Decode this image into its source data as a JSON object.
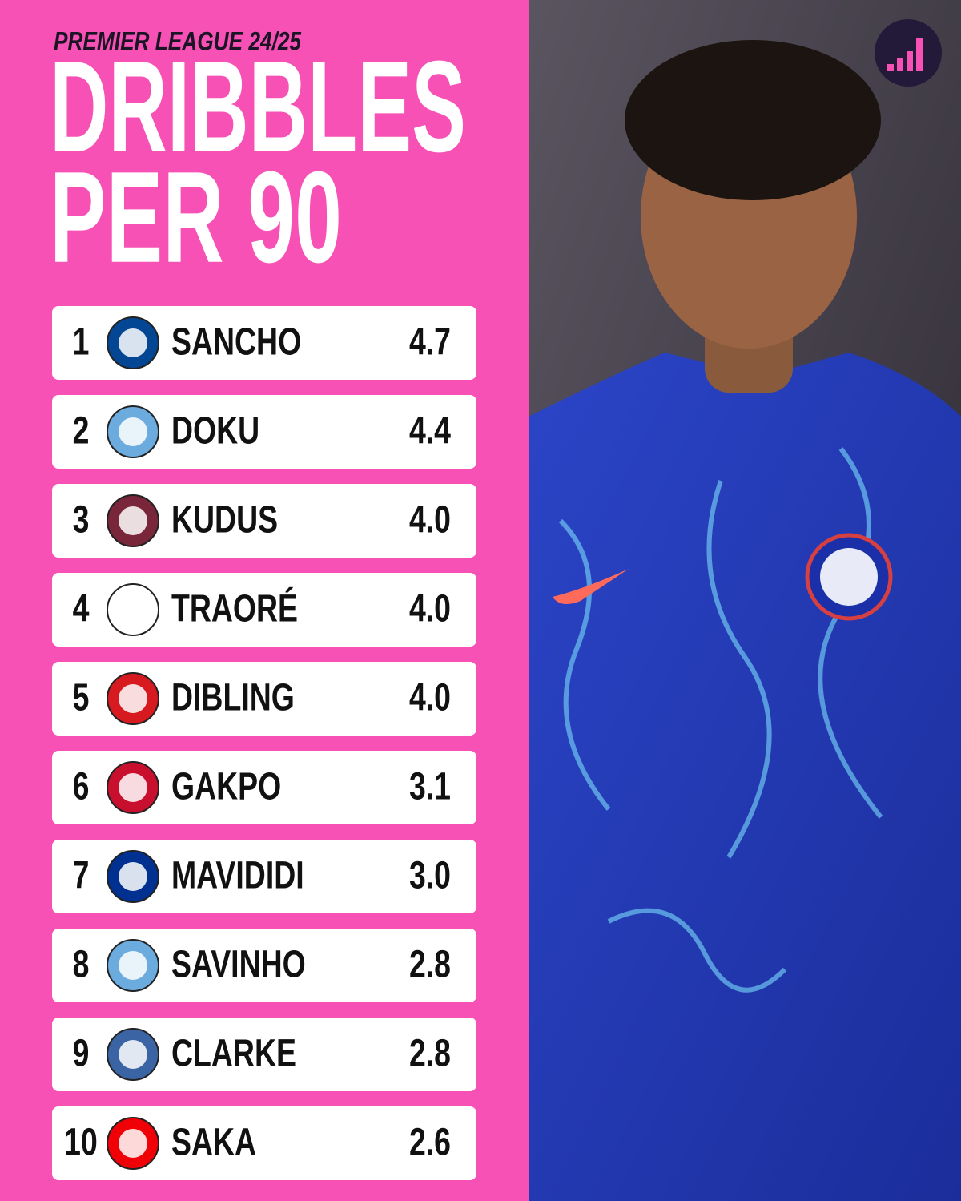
{
  "header": {
    "subtitle": "PREMIER LEAGUE 24/25",
    "title_lines": [
      "DRIBBLES",
      "PER 90"
    ]
  },
  "rows": [
    {
      "rank": 1,
      "player": "SANCHO",
      "value": "4.7"
    },
    {
      "rank": 2,
      "player": "DOKU",
      "value": "4.4"
    },
    {
      "rank": 3,
      "player": "KUDUS",
      "value": "4.0"
    },
    {
      "rank": 4,
      "player": "TRAORÉ",
      "value": "4.0"
    },
    {
      "rank": 5,
      "player": "DIBLING",
      "value": "4.0"
    },
    {
      "rank": 6,
      "player": "GAKPO",
      "value": "3.1"
    },
    {
      "rank": 7,
      "player": "MAVIDIDI",
      "value": "3.0"
    },
    {
      "rank": 8,
      "player": "SAVINHO",
      "value": "2.8"
    },
    {
      "rank": 9,
      "player": "CLARKE",
      "value": "2.8"
    },
    {
      "rank": 10,
      "player": "SAKA",
      "value": "2.6"
    }
  ]
}
